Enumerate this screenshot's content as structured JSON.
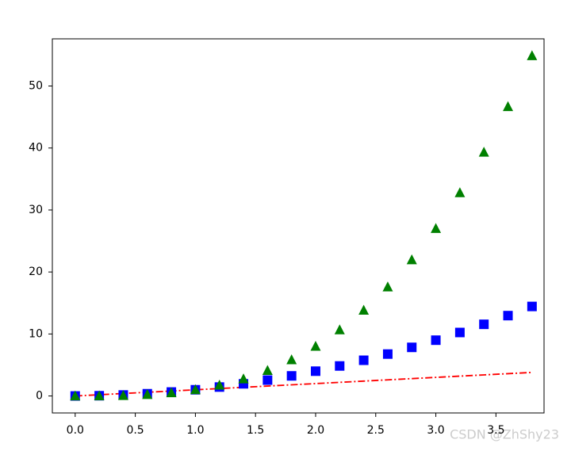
{
  "chart_data": {
    "type": "line",
    "x": [
      0,
      0.2,
      0.4,
      0.6,
      0.8,
      1,
      1.2,
      1.4,
      1.6,
      1.8,
      2,
      2.2,
      2.4,
      2.6,
      2.8,
      3,
      3.2,
      3.4,
      3.6,
      3.8
    ],
    "series": [
      {
        "color": "#ff0000",
        "style": "dashdot",
        "values": [
          0,
          0.2,
          0.4,
          0.6,
          0.8,
          1,
          1.2,
          1.4,
          1.6,
          1.8,
          2,
          2.2,
          2.4,
          2.6,
          2.8,
          3,
          3.2,
          3.4,
          3.6,
          3.8
        ]
      },
      {
        "color": "#0000ff",
        "style": "square",
        "values": [
          0,
          0.04,
          0.16,
          0.36,
          0.64,
          1,
          1.44,
          1.96,
          2.56,
          3.24,
          4,
          4.84,
          5.76,
          6.76,
          7.84,
          9,
          10.24,
          11.56,
          12.96,
          14.44
        ]
      },
      {
        "color": "#008000",
        "style": "triangle",
        "values": [
          0,
          0.008,
          0.064,
          0.216,
          0.512,
          1,
          1.728,
          2.744,
          4.096,
          5.832,
          8,
          10.648,
          13.824,
          17.576,
          21.952,
          27,
          32.768,
          39.304,
          46.656,
          54.872
        ]
      }
    ],
    "xlim": [
      -0.19,
      3.9
    ],
    "ylim": [
      -2.74,
      57.61
    ],
    "xticks": [
      {
        "value": 0,
        "label": "0.0"
      },
      0.5,
      {
        "value": 1,
        "label": "1.0"
      },
      1.5,
      {
        "value": 2,
        "label": "2.0"
      },
      2.5,
      {
        "value": 3,
        "label": "3.0"
      },
      3.5
    ],
    "yticks": [
      0,
      10,
      20,
      30,
      40,
      50
    ],
    "grid": false,
    "watermark": "CSDN @ZhShy23"
  }
}
